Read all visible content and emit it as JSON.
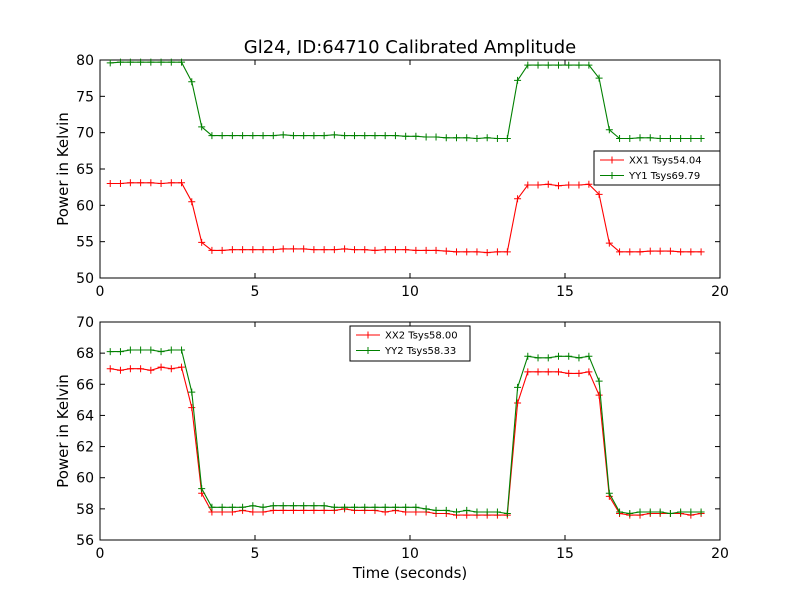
{
  "figure": {
    "title": "Gl24, ID:64710 Calibrated Amplitude",
    "xlabel": "Time (seconds)"
  },
  "colors": {
    "red": "#ff0000",
    "green": "#008000",
    "frame": "#000000",
    "background": "#ffffff"
  },
  "chart_data": [
    {
      "type": "line",
      "ylabel": "Power in Kelvin",
      "xlim": [
        0,
        20
      ],
      "ylim": [
        50,
        80
      ],
      "xticks": [
        "0",
        "5",
        "10",
        "15",
        "20"
      ],
      "xtick_values": [
        0,
        5,
        10,
        15,
        20
      ],
      "yticks": [
        "50",
        "55",
        "60",
        "65",
        "70",
        "75",
        "80"
      ],
      "ytick_values": [
        50,
        55,
        60,
        65,
        70,
        75,
        80
      ],
      "legend_position": "center-right",
      "grid": false,
      "x": [
        0.33,
        0.66,
        0.98,
        1.31,
        1.64,
        1.97,
        2.3,
        2.63,
        2.96,
        3.28,
        3.61,
        3.94,
        4.27,
        4.6,
        4.93,
        5.26,
        5.59,
        5.91,
        6.24,
        6.57,
        6.9,
        7.23,
        7.56,
        7.89,
        8.21,
        8.54,
        8.87,
        9.2,
        9.53,
        9.86,
        10.19,
        10.52,
        10.84,
        11.17,
        11.5,
        11.83,
        12.16,
        12.49,
        12.82,
        13.14,
        13.47,
        13.8,
        14.13,
        14.46,
        14.79,
        15.12,
        15.45,
        15.77,
        16.1,
        16.43,
        16.76,
        17.09,
        17.42,
        17.75,
        18.07,
        18.4,
        18.73,
        19.06,
        19.39
      ],
      "series": [
        {
          "name": "XX1 Tsys54.04",
          "color": "#ff0000",
          "values": [
            63.0,
            63.0,
            63.1,
            63.1,
            63.1,
            63.0,
            63.1,
            63.1,
            60.5,
            54.9,
            53.8,
            53.8,
            53.9,
            53.9,
            53.9,
            53.9,
            53.9,
            54.0,
            54.0,
            54.0,
            53.9,
            53.9,
            53.9,
            54.0,
            53.9,
            53.9,
            53.8,
            53.9,
            53.9,
            53.9,
            53.8,
            53.8,
            53.8,
            53.7,
            53.6,
            53.6,
            53.6,
            53.5,
            53.6,
            53.6,
            60.9,
            62.8,
            62.8,
            62.9,
            62.7,
            62.8,
            62.8,
            62.9,
            61.5,
            54.8,
            53.6,
            53.6,
            53.6,
            53.7,
            53.7,
            53.7,
            53.6,
            53.6,
            53.6
          ]
        },
        {
          "name": "YY1 Tsys69.79",
          "color": "#008000",
          "values": [
            79.6,
            79.7,
            79.7,
            79.7,
            79.7,
            79.7,
            79.7,
            79.7,
            77.0,
            70.8,
            69.6,
            69.6,
            69.6,
            69.6,
            69.6,
            69.6,
            69.6,
            69.7,
            69.6,
            69.6,
            69.6,
            69.6,
            69.7,
            69.6,
            69.6,
            69.6,
            69.6,
            69.6,
            69.6,
            69.5,
            69.5,
            69.4,
            69.4,
            69.3,
            69.3,
            69.3,
            69.2,
            69.3,
            69.2,
            69.2,
            77.2,
            79.3,
            79.3,
            79.3,
            79.3,
            79.3,
            79.3,
            79.3,
            77.5,
            70.4,
            69.2,
            69.2,
            69.3,
            69.3,
            69.2,
            69.2,
            69.2,
            69.2,
            69.2
          ]
        }
      ]
    },
    {
      "type": "line",
      "ylabel": "Power in Kelvin",
      "xlabel": "Time (seconds)",
      "xlim": [
        0,
        20
      ],
      "ylim": [
        56,
        70
      ],
      "xticks": [
        "0",
        "5",
        "10",
        "15",
        "20"
      ],
      "xtick_values": [
        0,
        5,
        10,
        15,
        20
      ],
      "yticks": [
        "56",
        "58",
        "60",
        "62",
        "64",
        "66",
        "68",
        "70"
      ],
      "ytick_values": [
        56,
        58,
        60,
        62,
        64,
        66,
        68,
        70
      ],
      "legend_position": "top-center",
      "grid": false,
      "x": [
        0.33,
        0.66,
        0.98,
        1.31,
        1.64,
        1.97,
        2.3,
        2.63,
        2.96,
        3.28,
        3.61,
        3.94,
        4.27,
        4.6,
        4.93,
        5.26,
        5.59,
        5.91,
        6.24,
        6.57,
        6.9,
        7.23,
        7.56,
        7.89,
        8.21,
        8.54,
        8.87,
        9.2,
        9.53,
        9.86,
        10.19,
        10.52,
        10.84,
        11.17,
        11.5,
        11.83,
        12.16,
        12.49,
        12.82,
        13.14,
        13.47,
        13.8,
        14.13,
        14.46,
        14.79,
        15.12,
        15.45,
        15.77,
        16.1,
        16.43,
        16.76,
        17.09,
        17.42,
        17.75,
        18.07,
        18.4,
        18.73,
        19.06,
        19.39
      ],
      "series": [
        {
          "name": "XX2 Tsys58.00",
          "color": "#ff0000",
          "values": [
            67.0,
            66.9,
            67.0,
            67.0,
            66.9,
            67.1,
            67.0,
            67.1,
            64.5,
            59.0,
            57.8,
            57.8,
            57.8,
            57.9,
            57.8,
            57.8,
            57.9,
            57.9,
            57.9,
            57.9,
            57.9,
            57.9,
            57.9,
            58.0,
            57.9,
            57.9,
            57.9,
            57.8,
            57.9,
            57.8,
            57.8,
            57.8,
            57.7,
            57.7,
            57.6,
            57.6,
            57.6,
            57.6,
            57.6,
            57.6,
            64.8,
            66.8,
            66.8,
            66.8,
            66.8,
            66.7,
            66.7,
            66.8,
            65.3,
            58.8,
            57.7,
            57.6,
            57.6,
            57.7,
            57.7,
            57.7,
            57.7,
            57.6,
            57.7
          ]
        },
        {
          "name": "YY2 Tsys58.33",
          "color": "#008000",
          "values": [
            68.1,
            68.1,
            68.2,
            68.2,
            68.2,
            68.1,
            68.2,
            68.2,
            65.5,
            59.3,
            58.1,
            58.1,
            58.1,
            58.1,
            58.2,
            58.1,
            58.2,
            58.2,
            58.2,
            58.2,
            58.2,
            58.2,
            58.1,
            58.1,
            58.1,
            58.1,
            58.1,
            58.1,
            58.1,
            58.1,
            58.1,
            58.0,
            57.9,
            57.9,
            57.8,
            57.9,
            57.8,
            57.8,
            57.8,
            57.7,
            65.8,
            67.8,
            67.7,
            67.7,
            67.8,
            67.8,
            67.7,
            67.8,
            66.2,
            59.0,
            57.8,
            57.7,
            57.8,
            57.8,
            57.8,
            57.7,
            57.8,
            57.8,
            57.8
          ]
        }
      ]
    }
  ]
}
